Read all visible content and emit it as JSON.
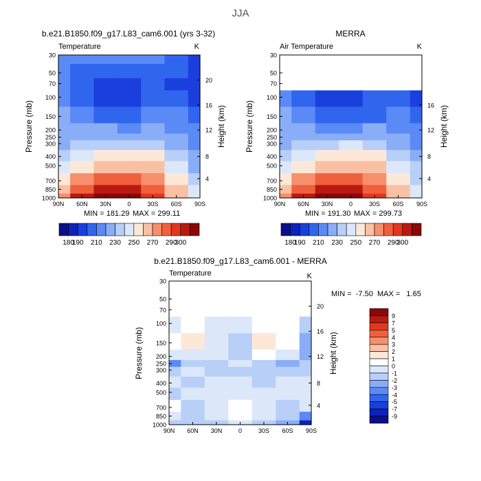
{
  "page": {
    "title": "JJA"
  },
  "panels": [
    {
      "title": "b.e21.B1850.f09_g17.L83_cam6.001 (yrs 3-32)",
      "subtitle": "Temperature",
      "units": "K",
      "left_axis_label": "Pressure (mb)",
      "right_axis_label": "Height (km)",
      "min_label": "MIN = 181.29",
      "max_label": "MAX = 299.11"
    },
    {
      "title": "MERRA",
      "subtitle": "Air Temperature",
      "units": "K",
      "left_axis_label": "Pressure (mb)",
      "right_axis_label": "Height (km)",
      "min_label": "MIN = 191.30",
      "max_label": "MAX = 299.73"
    },
    {
      "title": "b.e21.B1850.f09_g17.L83_cam6.001 - MERRA",
      "subtitle": "Temperature",
      "units": "K",
      "left_axis_label": "Pressure (mb)",
      "right_axis_label": "Height (km)",
      "minmax_label": "MIN =  -7.50  MAX =   1.65"
    }
  ],
  "chart_data": [
    {
      "type": "heatmap",
      "title": "b.e21.B1850.f09_g17.L83_cam6.001 (yrs 3-32)",
      "subtitle": "Temperature",
      "units": "K",
      "x": [
        "90N",
        "60N",
        "30N",
        "0",
        "30S",
        "60S",
        "90S"
      ],
      "y_pressure_mb": [
        30,
        50,
        70,
        100,
        150,
        200,
        250,
        300,
        400,
        500,
        700,
        850,
        1000
      ],
      "y_height_km": [
        20,
        16,
        12,
        8,
        4
      ],
      "z": [
        [
          213,
          211,
          213,
          214,
          212,
          203,
          193
        ],
        [
          213,
          206,
          201,
          203,
          208,
          201,
          191
        ],
        [
          212,
          204,
          195,
          194,
          203,
          199,
          190
        ],
        [
          215,
          205,
          193,
          191,
          200,
          204,
          196
        ],
        [
          222,
          216,
          205,
          203,
          210,
          214,
          207
        ],
        [
          225,
          223,
          220,
          219,
          220,
          218,
          212
        ],
        [
          226,
          226,
          228,
          228,
          226,
          220,
          210
        ],
        [
          228,
          232,
          238,
          239,
          236,
          225,
          214
        ],
        [
          236,
          245,
          255,
          257,
          252,
          237,
          222
        ],
        [
          244,
          256,
          266,
          268,
          262,
          246,
          229
        ],
        [
          258,
          272,
          281,
          283,
          276,
          258,
          238
        ],
        [
          266,
          283,
          291,
          292,
          283,
          262,
          240
        ],
        [
          272,
          290,
          299,
          298,
          286,
          262,
          240
        ]
      ],
      "min": 181.29,
      "max": 299.11,
      "levels": [
        180,
        190,
        200,
        210,
        220,
        230,
        240,
        250,
        260,
        270,
        280,
        290,
        300
      ]
    },
    {
      "type": "heatmap",
      "title": "MERRA",
      "subtitle": "Air Temperature",
      "units": "K",
      "x": [
        "90N",
        "60N",
        "30N",
        "0",
        "30S",
        "60S",
        "90S"
      ],
      "y_pressure_mb": [
        30,
        50,
        70,
        100,
        150,
        200,
        250,
        300,
        400,
        500,
        700,
        850,
        1000
      ],
      "y_height_km": [
        16,
        12,
        8,
        4
      ],
      "z": [
        [
          null,
          null,
          null,
          null,
          null,
          null,
          null
        ],
        [
          null,
          null,
          null,
          null,
          null,
          null,
          null
        ],
        [
          null,
          null,
          null,
          null,
          null,
          null,
          null
        ],
        [
          215,
          206,
          194,
          192,
          201,
          203,
          195
        ],
        [
          222,
          217,
          205,
          202,
          209,
          213,
          206
        ],
        [
          225,
          223,
          219,
          219,
          220,
          217,
          211
        ],
        [
          226,
          227,
          229,
          229,
          227,
          220,
          210
        ],
        [
          229,
          233,
          239,
          240,
          237,
          225,
          214
        ],
        [
          237,
          246,
          256,
          258,
          252,
          237,
          222
        ],
        [
          245,
          257,
          266,
          268,
          262,
          246,
          230
        ],
        [
          259,
          273,
          282,
          283,
          276,
          258,
          239
        ],
        [
          267,
          284,
          292,
          292,
          283,
          263,
          241
        ],
        [
          273,
          291,
          299,
          298,
          287,
          263,
          241
        ]
      ],
      "min": 191.3,
      "max": 299.73,
      "levels": [
        180,
        190,
        200,
        210,
        220,
        230,
        240,
        250,
        260,
        270,
        280,
        290,
        300
      ]
    },
    {
      "type": "heatmap",
      "title": "b.e21.B1850.f09_g17.L83_cam6.001 - MERRA",
      "subtitle": "Temperature",
      "units": "K",
      "x": [
        "90N",
        "60N",
        "30N",
        "0",
        "30S",
        "60S",
        "90S"
      ],
      "y_pressure_mb": [
        30,
        50,
        70,
        100,
        150,
        200,
        250,
        300,
        400,
        500,
        700,
        850,
        1000
      ],
      "y_height_km": [
        20,
        16,
        12,
        8,
        4
      ],
      "z": [
        [
          null,
          null,
          null,
          null,
          null,
          null,
          null
        ],
        [
          null,
          null,
          null,
          null,
          null,
          null,
          null
        ],
        [
          null,
          null,
          null,
          null,
          null,
          null,
          null
        ],
        [
          -0.5,
          0.5,
          -1.0,
          -1.0,
          0.8,
          0.5,
          -1.5
        ],
        [
          0.5,
          1.2,
          -0.5,
          -1.5,
          1.5,
          0.8,
          -2.5
        ],
        [
          -1.0,
          -0.5,
          -1.0,
          -1.5,
          0.5,
          -0.5,
          -3.0
        ],
        [
          -4.0,
          -2.0,
          -1.5,
          -1.0,
          -1.5,
          -2.5,
          -2.0
        ],
        [
          -2.0,
          -1.0,
          -1.5,
          -2.0,
          -1.5,
          -1.5,
          -1.5
        ],
        [
          -1.0,
          -1.5,
          -1.0,
          -1.0,
          -1.5,
          -1.0,
          -1.0
        ],
        [
          -1.5,
          -1.0,
          -1.0,
          -1.0,
          -1.0,
          -1.0,
          -1.0
        ],
        [
          0.5,
          -1.5,
          -1.0,
          0.5,
          -0.5,
          -1.5,
          -1.0
        ],
        [
          -1.0,
          -1.5,
          -1.0,
          0.5,
          -1.0,
          -1.5,
          -4.0
        ],
        [
          -1.5,
          -2.0,
          -1.5,
          -1.0,
          -1.5,
          -2.5,
          -7.5
        ]
      ],
      "min": -7.5,
      "max": 1.65,
      "levels": [
        -9,
        -7,
        -5,
        -4,
        -3,
        -2,
        -1,
        0,
        1,
        2,
        3,
        4,
        5,
        7,
        9
      ]
    }
  ],
  "colorbars": {
    "absolute": {
      "tick_labels": [
        "180",
        "190",
        "210",
        "230",
        "250",
        "270",
        "290",
        "300"
      ],
      "colors": [
        "#0a0f8a",
        "#0d22b8",
        "#1a3fdc",
        "#3065ee",
        "#5a8af5",
        "#8aadf8",
        "#b8cff8",
        "#dce8fa",
        "#fde8d8",
        "#f9c0a3",
        "#f68f6c",
        "#f0603c",
        "#e0381f",
        "#b81a12",
        "#8a0808"
      ]
    },
    "difference": {
      "tick_labels": [
        "9",
        "7",
        "5",
        "4",
        "3",
        "2",
        "1",
        "0",
        "-1",
        "-2",
        "-3",
        "-4",
        "-5",
        "-7",
        "-9"
      ],
      "colors": [
        "#8a0808",
        "#b81a12",
        "#e0381f",
        "#f0603c",
        "#f68f6c",
        "#f9c0a3",
        "#fde8d8",
        "#ffffff",
        "#dce8fa",
        "#b8cff8",
        "#8aadf8",
        "#5a8af5",
        "#3065ee",
        "#1a3fdc",
        "#0d22b8",
        "#0a0f8a"
      ]
    }
  }
}
